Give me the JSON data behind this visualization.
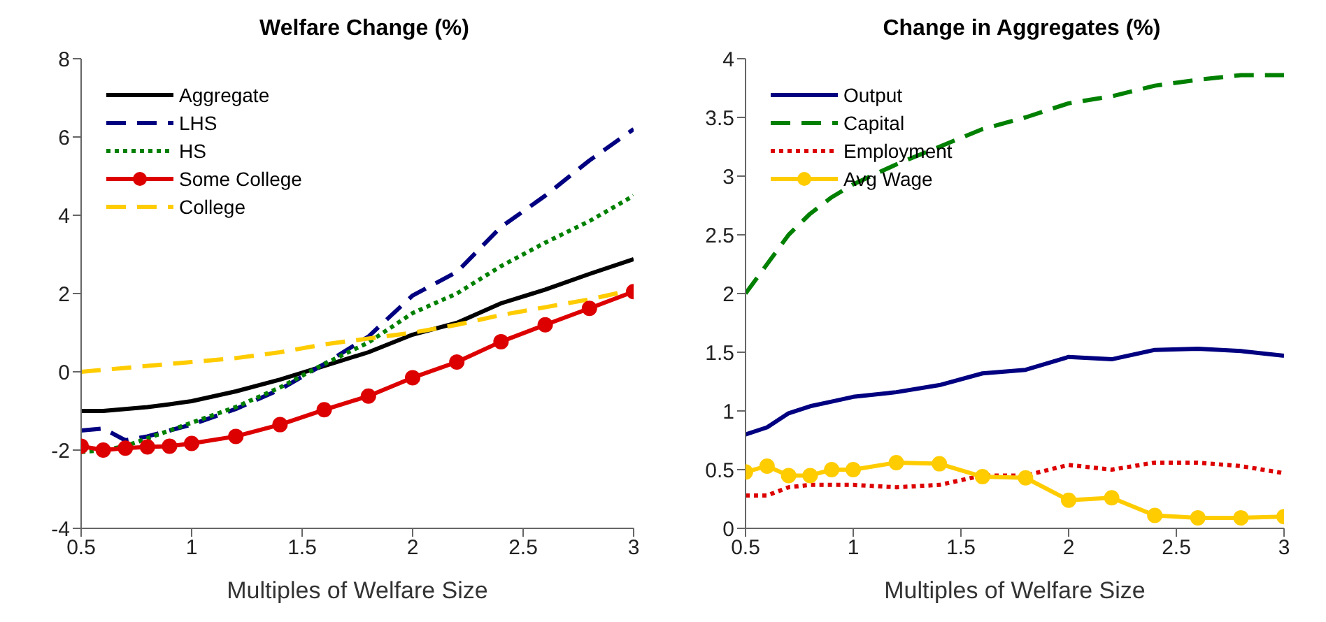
{
  "chart_data": [
    {
      "type": "line",
      "title": "Welfare Change (%)",
      "xlabel": "Multiples of Welfare Size",
      "x": [
        0.5,
        0.6,
        0.7,
        0.8,
        0.9,
        1.0,
        1.2,
        1.4,
        1.6,
        1.8,
        2.0,
        2.2,
        2.4,
        2.6,
        2.8,
        3.0
      ],
      "series": [
        {
          "name": "Aggregate",
          "color": "#000000",
          "line_style": "solid",
          "marker": "none",
          "values": [
            -1.0,
            -1.0,
            -0.95,
            -0.9,
            -0.83,
            -0.75,
            -0.5,
            -0.2,
            0.15,
            0.5,
            0.95,
            1.25,
            1.75,
            2.1,
            2.5,
            2.88
          ]
        },
        {
          "name": "LHS",
          "color": "#000080",
          "line_style": "dashed",
          "marker": "none",
          "values": [
            -1.5,
            -1.45,
            -1.75,
            -1.65,
            -1.5,
            -1.35,
            -0.95,
            -0.45,
            0.2,
            0.9,
            1.95,
            2.55,
            3.7,
            4.5,
            5.4,
            6.2
          ]
        },
        {
          "name": "HS",
          "color": "#008000",
          "line_style": "dotted",
          "marker": "none",
          "values": [
            -2.05,
            -2.0,
            -1.9,
            -1.7,
            -1.5,
            -1.3,
            -0.9,
            -0.4,
            0.2,
            0.75,
            1.5,
            2.0,
            2.7,
            3.3,
            3.85,
            4.5
          ]
        },
        {
          "name": "Some College",
          "color": "#dd0000",
          "line_style": "solid",
          "marker": "circle",
          "values": [
            -1.9,
            -2.0,
            -1.95,
            -1.92,
            -1.9,
            -1.83,
            -1.65,
            -1.35,
            -0.97,
            -0.62,
            -0.15,
            0.25,
            0.77,
            1.2,
            1.62,
            2.05
          ]
        },
        {
          "name": "College",
          "color": "#ffcc00",
          "line_style": "dashed",
          "marker": "none",
          "values": [
            0,
            0.05,
            0.1,
            0.15,
            0.2,
            0.25,
            0.35,
            0.5,
            0.7,
            0.85,
            1.0,
            1.2,
            1.45,
            1.65,
            1.85,
            2.1
          ]
        }
      ],
      "xlim": [
        0.5,
        3
      ],
      "xticks": [
        0.5,
        1,
        1.5,
        2,
        2.5,
        3
      ],
      "ylim": [
        -4,
        8
      ],
      "yticks": [
        -4,
        -2,
        0,
        2,
        4,
        6,
        8
      ],
      "grid": false,
      "legend": "top left"
    },
    {
      "type": "line",
      "title": "Change in Aggregates (%)",
      "xlabel": "Multiples of Welfare Size",
      "x": [
        0.5,
        0.6,
        0.7,
        0.8,
        0.9,
        1.0,
        1.2,
        1.4,
        1.6,
        1.8,
        2.0,
        2.2,
        2.4,
        2.6,
        2.8,
        3.0
      ],
      "series": [
        {
          "name": "Output",
          "color": "#000080",
          "line_style": "solid",
          "marker": "none",
          "values": [
            0.8,
            0.86,
            0.98,
            1.04,
            1.08,
            1.12,
            1.16,
            1.22,
            1.32,
            1.35,
            1.46,
            1.44,
            1.52,
            1.53,
            1.51,
            1.47
          ]
        },
        {
          "name": "Capital",
          "color": "#008000",
          "line_style": "dashed",
          "marker": "none",
          "values": [
            2.0,
            2.25,
            2.5,
            2.68,
            2.82,
            2.93,
            3.1,
            3.25,
            3.4,
            3.5,
            3.62,
            3.68,
            3.77,
            3.82,
            3.86,
            3.86
          ]
        },
        {
          "name": "Employment",
          "color": "#dd0000",
          "line_style": "dotted",
          "marker": "none",
          "values": [
            0.28,
            0.28,
            0.35,
            0.37,
            0.37,
            0.37,
            0.35,
            0.37,
            0.45,
            0.45,
            0.54,
            0.5,
            0.56,
            0.56,
            0.53,
            0.47
          ]
        },
        {
          "name": "Avg Wage",
          "color": "#ffcc00",
          "line_style": "solid",
          "marker": "circle",
          "values": [
            0.48,
            0.53,
            0.45,
            0.45,
            0.5,
            0.5,
            0.56,
            0.55,
            0.44,
            0.43,
            0.24,
            0.26,
            0.11,
            0.09,
            0.09,
            0.1
          ]
        }
      ],
      "xlim": [
        0.5,
        3
      ],
      "xticks": [
        0.5,
        1,
        1.5,
        2,
        2.5,
        3
      ],
      "ylim": [
        0,
        4
      ],
      "yticks": [
        0,
        0.5,
        1,
        1.5,
        2,
        2.5,
        3,
        3.5,
        4
      ],
      "grid": false,
      "legend": "top left"
    }
  ]
}
